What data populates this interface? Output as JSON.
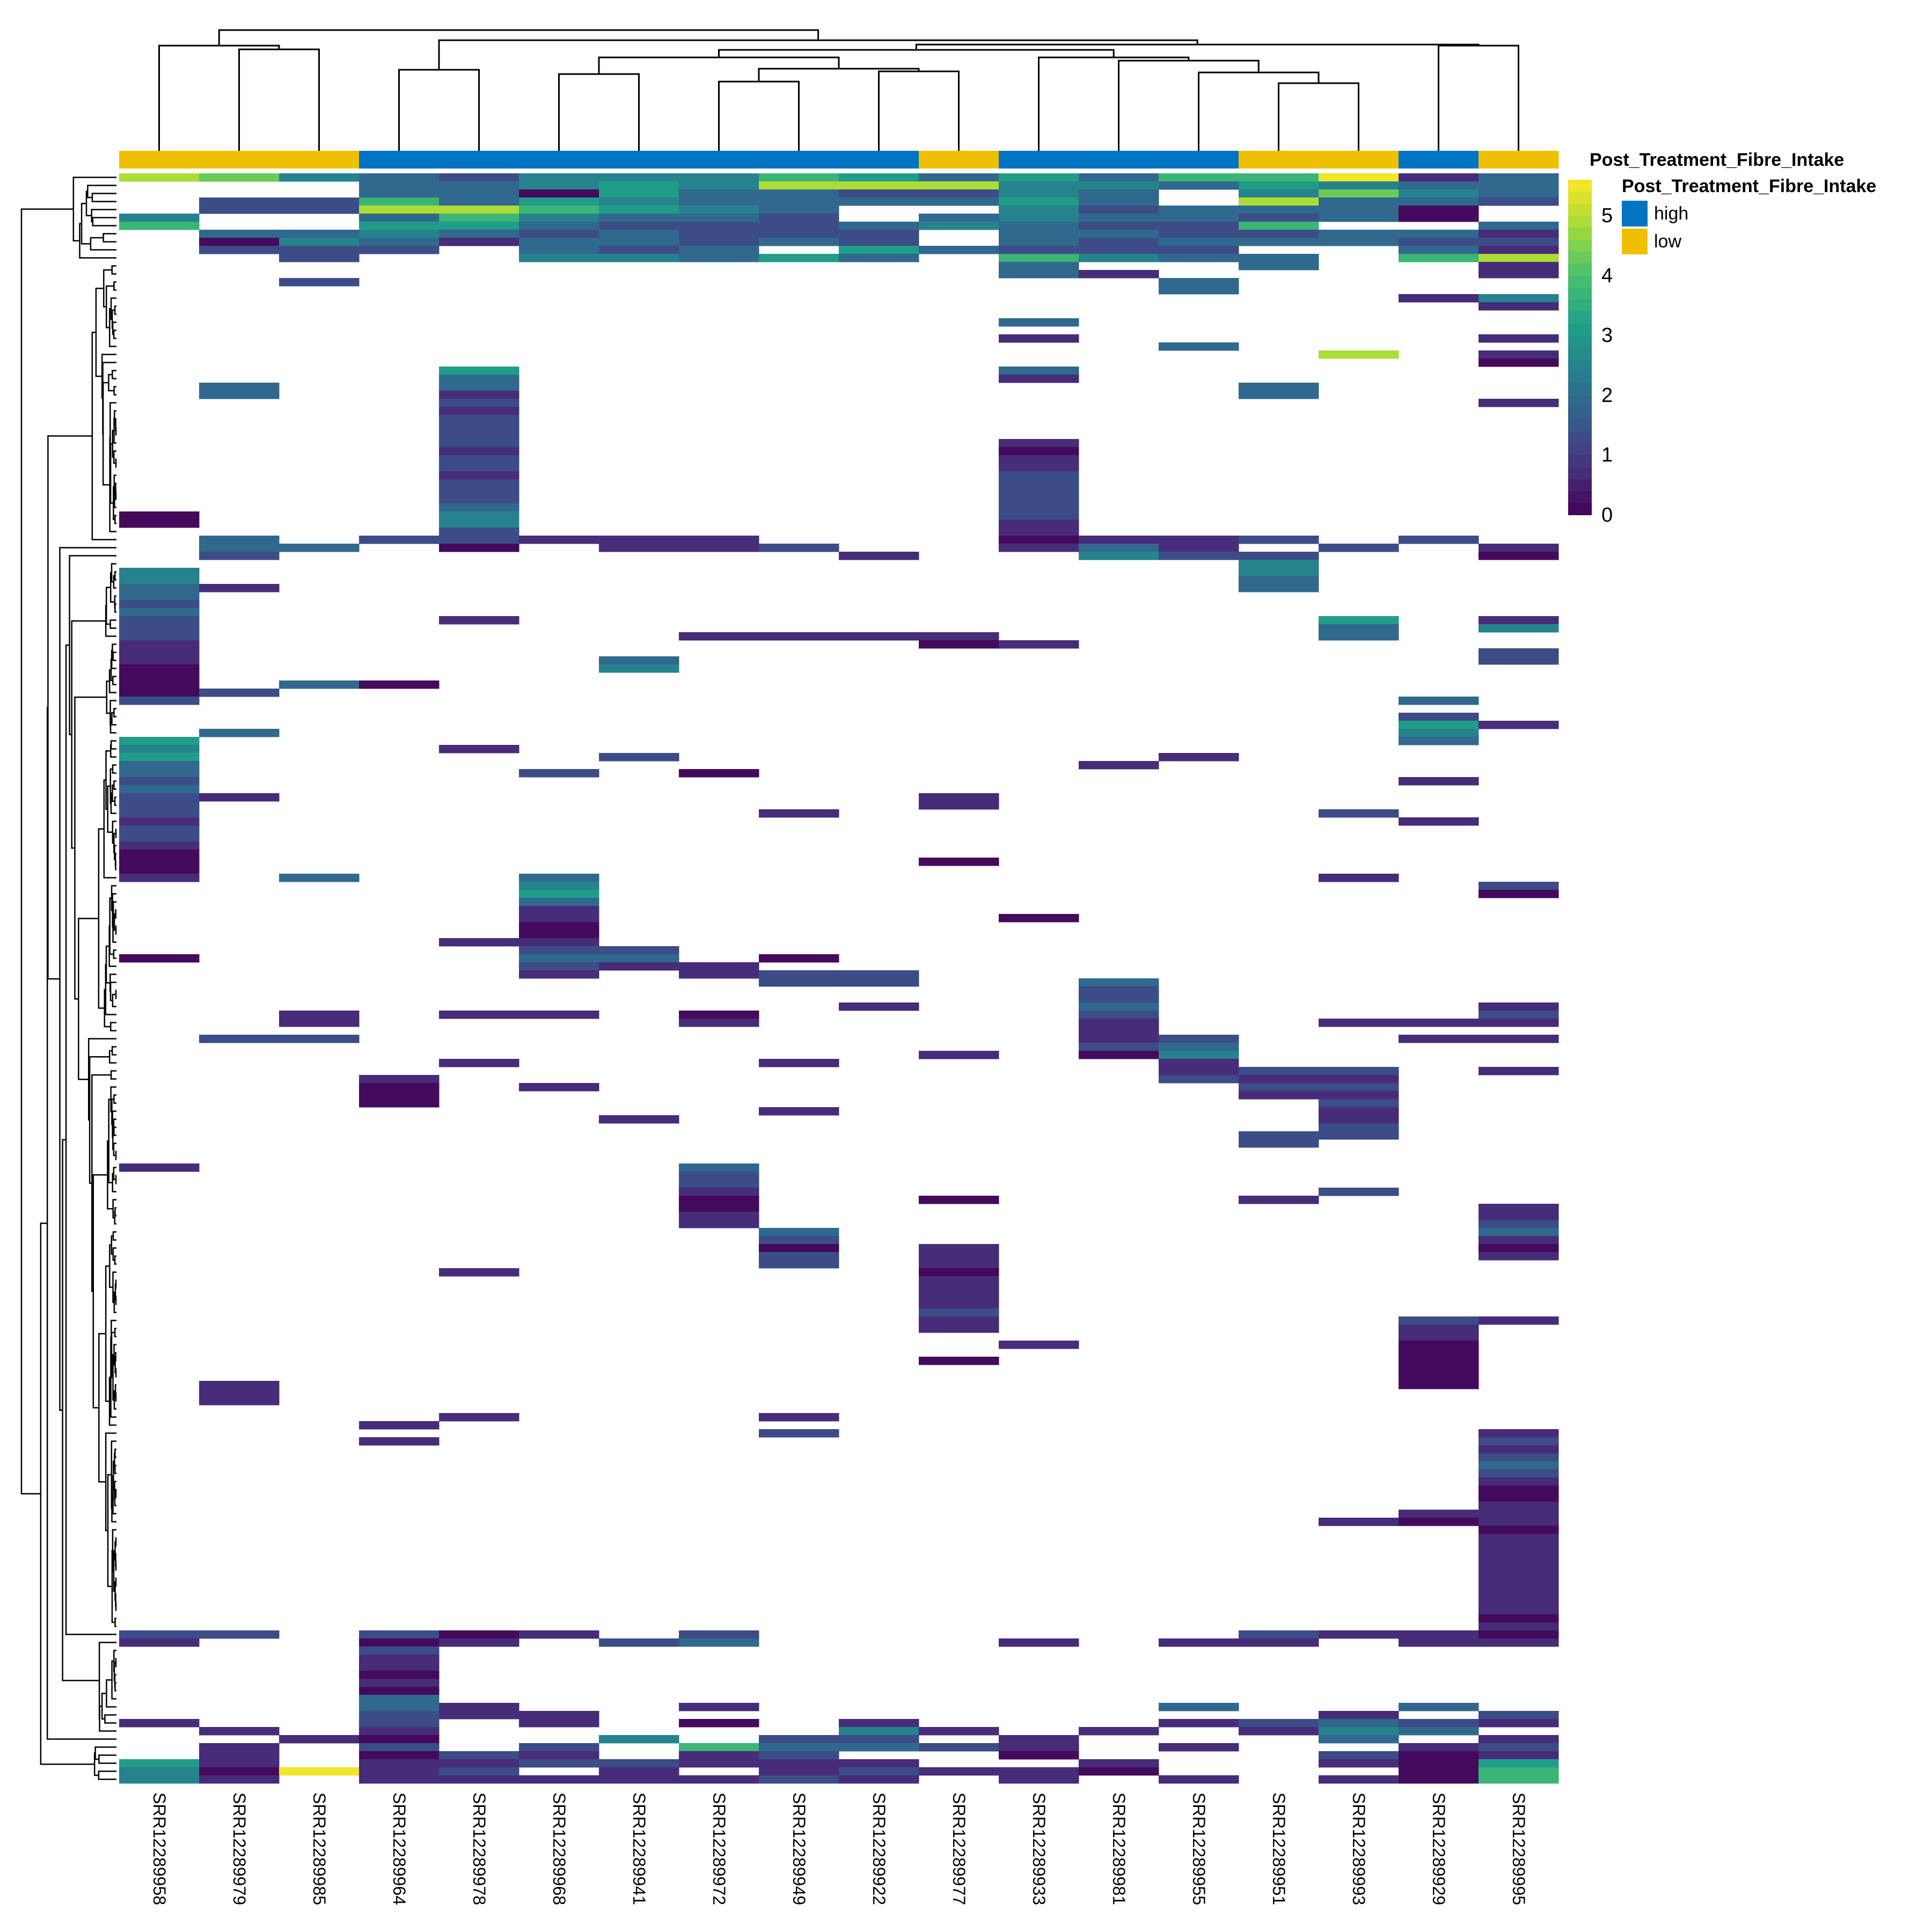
{
  "annotation_title": "Post_Treatment_Fibre_Intake",
  "legend": {
    "title": "Post_Treatment_Fibre_Intake",
    "items": [
      {
        "label": "high",
        "color": "#0073C2"
      },
      {
        "label": "low",
        "color": "#EFC000"
      }
    ]
  },
  "colorbar": {
    "ticks": [
      "5",
      "4",
      "3",
      "2",
      "1",
      "0"
    ],
    "vmin": 0,
    "vmax": 5.6
  },
  "chart_data": {
    "type": "heatmap",
    "columns": [
      "SRR12289958",
      "SRR12289979",
      "SRR12289985",
      "SRR12289964",
      "SRR12289978",
      "SRR12289968",
      "SRR12289941",
      "SRR12289972",
      "SRR12289949",
      "SRR12289922",
      "SRR12289977",
      "SRR12289933",
      "SRR12289981",
      "SRR12289955",
      "SRR12289951",
      "SRR12289993",
      "SRR12289929",
      "SRR12289995"
    ],
    "column_annotation": {
      "name": "Post_Treatment_Fibre_Intake",
      "values": [
        "low",
        "low",
        "low",
        "high",
        "high",
        "high",
        "high",
        "high",
        "high",
        "high",
        "low",
        "high",
        "high",
        "high",
        "low",
        "low",
        "high",
        "low"
      ]
    },
    "annotation_colors": {
      "high": "#0073C2",
      "low": "#EFC000"
    },
    "na_color": "#ffffff",
    "viridis": [
      "#440154",
      "#46327e",
      "#365c8d",
      "#277f8e",
      "#1fa187",
      "#4ac16d",
      "#a0da39",
      "#fde725"
    ],
    "char_values": {
      "0": 0.15,
      "1": 0.7,
      "2": 1.3,
      "3": 1.9,
      "4": 2.5,
      "5": 3.1,
      "6": 3.7,
      "7": 4.3,
      "8": 4.9,
      "9": 5.5
    },
    "col_dendrogram": [
      225,
      [
        196,
        0,
        [
          189,
          1,
          2
        ]
      ],
      [
        206,
        [
          151,
          3,
          4
        ],
        [
          198,
          [
            188,
            [
              174,
              [
                143,
                5,
                6
              ],
              [
                153,
                [
                  129,
                  7,
                  8
                ],
                [
                  148,
                  9,
                  10
                ]
              ]
            ],
            [
              174,
              11,
              [
                168,
                12,
                [
                  146,
                  13,
                  [
                    126,
                    14,
                    15
                  ]
                ]
              ]
            ]
          ],
          [
            196,
            16,
            17
          ]
        ]
      ]
    ],
    "rows": [
      "874324446535366913",
      "...334548884435433",
      "...3305332243.4743",
      ".226354333353.8332",
      ".22886543..423330.",
      "4..364332.3433230.",
      "6..553222343226..3",
      ".334323222.3322331",
      ".043133232.3233322",
      ".222.323.53222..31",
      "..2..44353.6433.68",
      "...........3..3..1",
      "...........31....1",
      "..2..........3....",
      ".............3....",
      "................14",
      ".................1",
      "..................",
      "...........3......",
      "..................",
      "...........1.....1",
      ".............3....",
      "...............8.1",
      ".................0",
      "....5......3......",
      "....3......1......",
      ".3..3.........3...",
      ".3..1.........3...",
      "....2............1",
      "....1.............",
      "....2.............",
      "....2.............",
      "....2.............",
      "....2......1......",
      "....1......0......",
      "....2......1......",
      "....2......1......",
      "....1......2......",
      "....2......2......",
      "....2......2......",
      "....2......2......",
      "....3......2......",
      "0...4......2......",
      "0...4......1......",
      "....2......1......",
      ".3.22111...0112.2.",
      ".33.0.112..131.2.1",
      ".2.......1..422..0",
      "..............4...",
      "4.............4...",
      "4.............3...",
      "31............3...",
      "3.................",
      "2.................",
      "3.................",
      "2...1..........5.1",
      "2..............3.4",
      "2......1111....3..",
      "1.........01......",
      "1................2",
      "1.....3..........2",
      "0.....4...........",
      "0.................",
      "0.30..............",
      "02................",
      "2...............3.",
      "..................",
      "................2.",
      "................51",
      ".3..............4.",
      "5...............3.",
      "4...1.............",
      "5.....2......1....",
      "3...........1.....",
      "3....2.0..........",
      "2...............1.",
      "3.................",
      "21........1.......",
      "2.........1.......",
      "2.......1......2..",
      "1...............1.",
      "2.................",
      "2.................",
      "1.................",
      "0.................",
      "0.........0.......",
      "0.................",
      "1.3..3.........1..",
      ".....4...........2",
      ".....5...........0",
      ".....3............",
      ".....1............",
      ".....1.....0......",
      ".....0............",
      ".....0............",
      "....11............",
      ".....22...........",
      "0....33.0.........",
      ".....211..........",
      ".....1.122........",
      "........22..3.....",
      "............2.....",
      "............2.....",
      ".........1..3....1",
      "..1.11.0....2....2",
      "..1....1....1..111",
      "............1.....",
      ".22.........12..11",
      "............23....",
      "..........1.04....",
      "....1...1....1....",
      ".............122.1",
      "...1.........211..",
      "...0.1........22..",
      "...0..........11..",
      "...0...........2..",
      "........1......1..",
      "......1........1..",
      "...............2..",
      "..............22..",
      "..............2...",
      "..................",
      "..................",
      "1......3..........",
      ".......2..........",
      ".......2..........",
      ".......1.......2..",
      ".......0..0...1...",
      ".......0.........1",
      ".......1.........1",
      ".......1.........2",
      "........3........3",
      "........2........1",
      "........0.1......0",
      "........2.1......1",
      "........2.1.......",
      "....1.....0.......",
      "..........1.......",
      "..........1.......",
      "..........1.......",
      "..........1.......",
      "..........2.......",
      "..........1.....21",
      "..........1.....1.",
      "................1.",
      "...........1....0.",
      "................0.",
      "..........0.....0.",
      "................0.",
      "................0.",
      ".1..............0.",
      ".1................",
      ".1................",
      "..................",
      "....1...1.........",
      "...1..............",
      "........2........1",
      "...1.............2",
      ".................1",
      ".................2",
      ".................3",
      ".................2",
      ".................1",
      ".................0",
      ".................0",
      ".................1",
      "................11",
      "...............101",
      ".................0",
      ".................1",
      ".................1",
      ".................1",
      ".................1",
      ".................1",
      ".................1",
      ".................1",
      ".................1",
      ".................1",
      ".................1",
      ".................0",
      ".................1",
      "22.201.2......2110",
      "1..01.23...1.11.11",
      "...2..............",
      "...1..............",
      "...1..............",
      "...0..............",
      "...1..............",
      "...0..............",
      "...3..............",
      "...31..1.....3..3.",
      "...211.........1.2",
      "1..2.1.0.1...12321",
      ".1.1.....41.1.143.",
      "..10..4.22.1...3.1",
      ".1.2.2.63321.1..12",
      ".1.021.12..0...201",
      "51.1122111..1..105",
      "40912.1.12110...06",
      "41.1111121.1.1.106"
    ]
  }
}
